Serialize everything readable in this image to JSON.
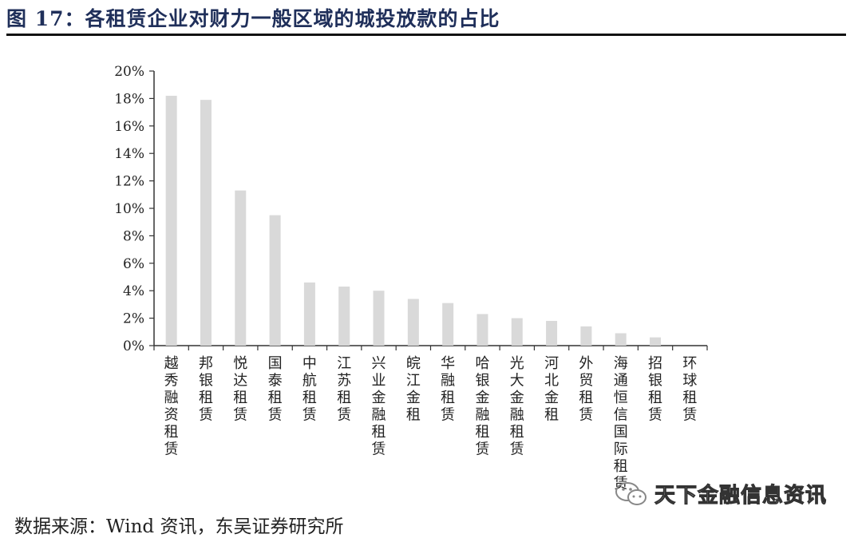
{
  "title": "图 17：各租赁企业对财力一般区域的城投放款的占比",
  "source": "数据来源：Wind 资讯，东吴证券研究所",
  "watermark": "天下金融信息资讯",
  "colors": {
    "bar": "#d9d9d9",
    "axis": "#333333",
    "title": "#1f2f5a"
  },
  "chart_data": {
    "type": "bar",
    "categories": [
      "越秀融资租赁",
      "邦银租赁",
      "悦达租赁",
      "国泰租赁",
      "中航租赁",
      "江苏租赁",
      "兴业金融租赁",
      "皖江金租",
      "华融租赁",
      "哈银金融租赁",
      "光大金融租赁",
      "河北金租",
      "外贸租赁",
      "海通恒信国际租赁",
      "招银租赁",
      "环球租赁"
    ],
    "values": [
      18.2,
      17.9,
      11.3,
      9.5,
      4.6,
      4.3,
      4.0,
      3.4,
      3.1,
      2.3,
      2.0,
      1.8,
      1.4,
      0.9,
      0.6,
      0.0
    ],
    "ylim": [
      0,
      20
    ],
    "yticks": [
      "0%",
      "2%",
      "4%",
      "6%",
      "8%",
      "10%",
      "12%",
      "14%",
      "16%",
      "18%",
      "20%"
    ],
    "grid": false,
    "legend": "none"
  }
}
